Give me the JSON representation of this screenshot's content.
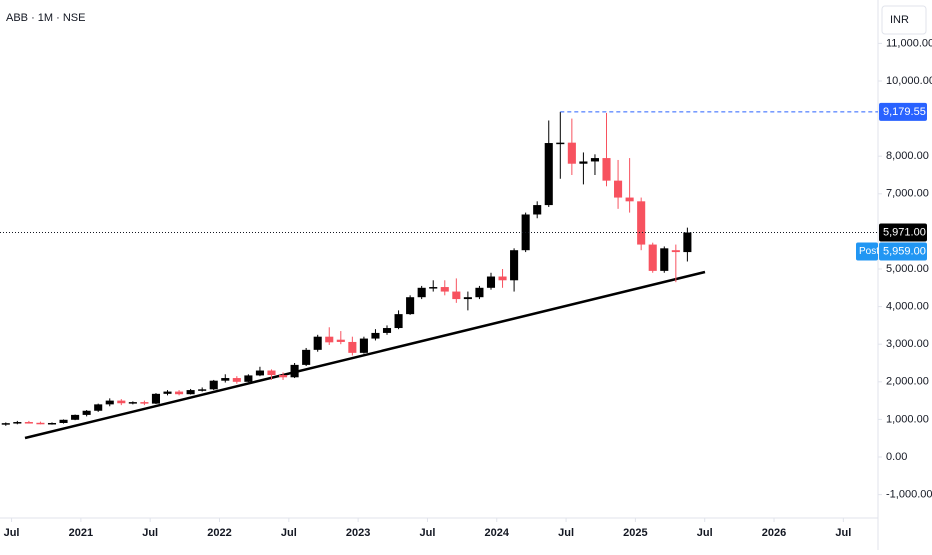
{
  "chart_data": {
    "type": "candlestick",
    "title": "ABB · 1M · NSE",
    "currency": "INR",
    "x": [
      "2020-06",
      "2020-07",
      "2020-08",
      "2020-09",
      "2020-10",
      "2020-11",
      "2020-12",
      "2021-01",
      "2021-02",
      "2021-03",
      "2021-04",
      "2021-05",
      "2021-06",
      "2021-07",
      "2021-08",
      "2021-09",
      "2021-10",
      "2021-11",
      "2021-12",
      "2022-01",
      "2022-02",
      "2022-03",
      "2022-04",
      "2022-05",
      "2022-06",
      "2022-07",
      "2022-08",
      "2022-09",
      "2022-10",
      "2022-11",
      "2022-12",
      "2023-01",
      "2023-02",
      "2023-03",
      "2023-04",
      "2023-05",
      "2023-06",
      "2023-07",
      "2023-08",
      "2023-09",
      "2023-10",
      "2023-11",
      "2023-12",
      "2024-01",
      "2024-02",
      "2024-03",
      "2024-04",
      "2024-05",
      "2024-06",
      "2024-07",
      "2024-08",
      "2024-09",
      "2024-10",
      "2024-11",
      "2024-12",
      "2025-01",
      "2025-02",
      "2025-03",
      "2025-04",
      "2025-05"
    ],
    "open": [
      860,
      900,
      930,
      910,
      890,
      905,
      990,
      1120,
      1230,
      1400,
      1500,
      1430,
      1460,
      1420,
      1680,
      1740,
      1670,
      1780,
      1800,
      2030,
      2100,
      2000,
      2170,
      2300,
      2180,
      2120,
      2450,
      2850,
      3200,
      3120,
      3060,
      2770,
      3150,
      3300,
      3430,
      3800,
      4250,
      4500,
      4520,
      4400,
      4200,
      4250,
      4500,
      4800,
      4700,
      5500,
      6450,
      6700,
      8350,
      8360,
      7800,
      7860,
      7950,
      7350,
      6900,
      6800,
      5650,
      4950,
      5500,
      5450
    ],
    "high": [
      920,
      960,
      960,
      940,
      920,
      1000,
      1130,
      1250,
      1420,
      1560,
      1540,
      1480,
      1500,
      1700,
      1780,
      1780,
      1810,
      1850,
      2050,
      2200,
      2150,
      2200,
      2400,
      2330,
      2250,
      2500,
      2900,
      3250,
      3450,
      3350,
      3200,
      3200,
      3400,
      3500,
      3900,
      4300,
      4550,
      4700,
      4700,
      4750,
      4400,
      4550,
      4900,
      5000,
      5550,
      6500,
      6800,
      8950,
      9179.55,
      9000,
      8100,
      8050,
      9150,
      7900,
      7950,
      6900,
      5700,
      5600,
      5650,
      6100
    ],
    "low": [
      830,
      870,
      890,
      870,
      860,
      890,
      980,
      1080,
      1200,
      1350,
      1380,
      1400,
      1380,
      1410,
      1640,
      1640,
      1660,
      1740,
      1780,
      1980,
      1950,
      1990,
      2150,
      2050,
      2050,
      2100,
      2420,
      2800,
      2980,
      3000,
      2700,
      2750,
      3100,
      3250,
      3400,
      3780,
      4200,
      4400,
      4300,
      4100,
      3900,
      4200,
      4450,
      4500,
      4400,
      5450,
      6350,
      6650,
      7400,
      7500,
      7250,
      7500,
      7200,
      6600,
      6500,
      5500,
      4900,
      4900,
      4650,
      5200
    ],
    "close": [
      900,
      930,
      910,
      890,
      905,
      990,
      1120,
      1230,
      1400,
      1500,
      1430,
      1460,
      1420,
      1680,
      1740,
      1670,
      1780,
      1800,
      2030,
      2100,
      2000,
      2170,
      2300,
      2180,
      2120,
      2450,
      2850,
      3200,
      3050,
      3060,
      2770,
      3150,
      3300,
      3430,
      3800,
      4250,
      4500,
      4520,
      4400,
      4200,
      4250,
      4500,
      4800,
      4700,
      5500,
      6450,
      6700,
      8350,
      8360,
      7800,
      7860,
      7950,
      7350,
      6900,
      6800,
      5650,
      4950,
      5550,
      5450,
      5971
    ],
    "up_color": "#000000",
    "down_color": "#f7525f",
    "xlim": [
      "2020-06",
      "2026-10"
    ],
    "xticks": [
      {
        "value": "2020-07",
        "label": "Jul"
      },
      {
        "value": "2021-01",
        "label": "2021"
      },
      {
        "value": "2021-07",
        "label": "Jul"
      },
      {
        "value": "2022-01",
        "label": "2022"
      },
      {
        "value": "2022-07",
        "label": "Jul"
      },
      {
        "value": "2023-01",
        "label": "2023"
      },
      {
        "value": "2023-07",
        "label": "Jul"
      },
      {
        "value": "2024-01",
        "label": "2024"
      },
      {
        "value": "2024-07",
        "label": "Jul"
      },
      {
        "value": "2025-01",
        "label": "2025"
      },
      {
        "value": "2025-07",
        "label": "Jul"
      },
      {
        "value": "2026-01",
        "label": "2026"
      },
      {
        "value": "2026-07",
        "label": "Jul"
      }
    ],
    "ylim": [
      -1622,
      12154
    ],
    "yticks": [
      {
        "value": 11000,
        "label": "11,000.00"
      },
      {
        "value": 10000,
        "label": "10,000.00"
      },
      {
        "value": 8000,
        "label": "8,000.00"
      },
      {
        "value": 7000,
        "label": "7,000.00"
      },
      {
        "value": 5000,
        "label": "5,000.00"
      },
      {
        "value": 4000,
        "label": "4,000.00"
      },
      {
        "value": 3000,
        "label": "3,000.00"
      },
      {
        "value": 2000,
        "label": "2,000.00"
      },
      {
        "value": 1000,
        "label": "1,000.00"
      },
      {
        "value": 0,
        "label": "0.00"
      },
      {
        "value": -1000,
        "label": "-1,000.00"
      }
    ],
    "high_line": {
      "value": 9179.55,
      "label": "9,179.55",
      "color": "#2962ff"
    },
    "last_price": {
      "value": 5971,
      "label": "5,971.00"
    },
    "post_market": {
      "tag": "Post",
      "value": 5959,
      "label": "5,959.00",
      "color": "#2196f3"
    }
  }
}
